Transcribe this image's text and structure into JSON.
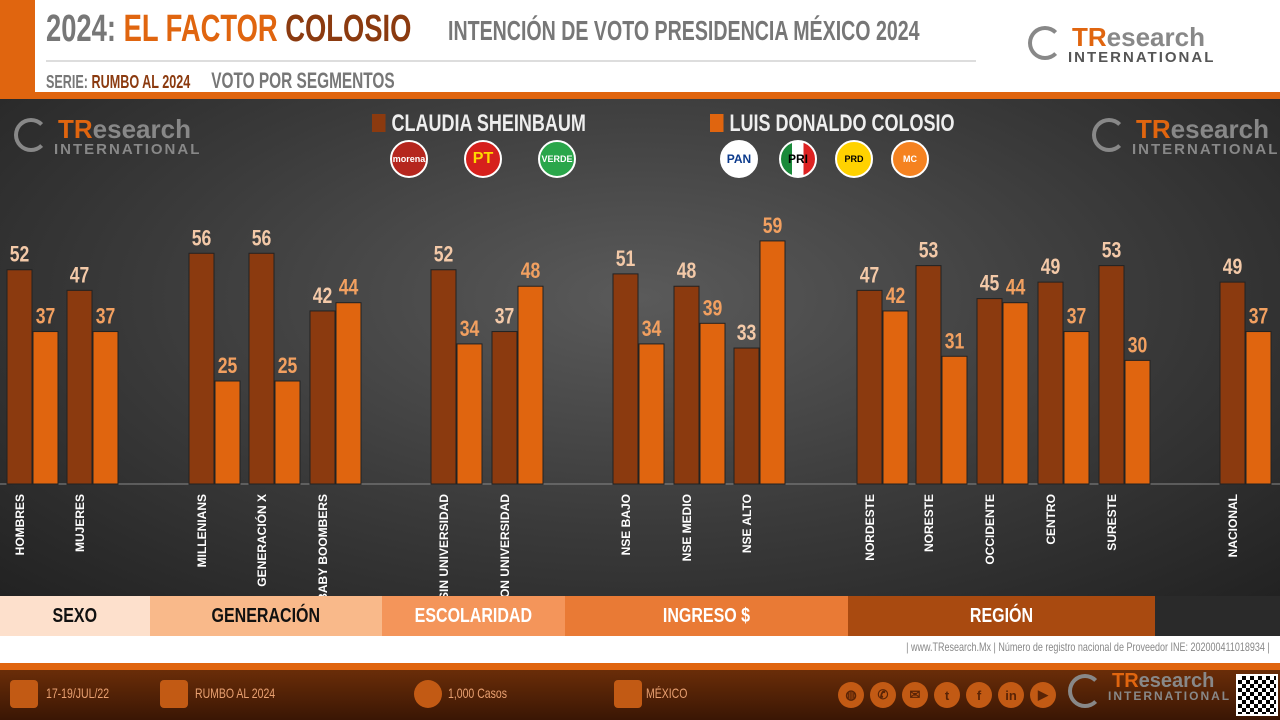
{
  "header": {
    "title_prefix": "2024:",
    "title_highlight1": "EL FACTOR",
    "title_highlight2": "COLOSIO",
    "subtitle": "INTENCIÓN DE VOTO PRESIDENCIA MÉXICO 2024",
    "serie_label": "SERIE:",
    "serie_value": "RUMBO AL 2024",
    "section": "VOTO POR SEGMENTOS"
  },
  "brand": {
    "tr": "TR",
    "research": "esearch",
    "intl": "INTERNATIONAL"
  },
  "colors": {
    "sheinbaum": "#8b3a0f",
    "colosio": "#e0650f",
    "accent": "#e0650f",
    "label_sheinbaum": "#f3c9a8",
    "label_colosio": "#f2a060"
  },
  "parties": {
    "sheinbaum": [
      "morena",
      "PT",
      "VERDE"
    ],
    "colosio": [
      "PAN",
      "PRI",
      "PRD",
      "MC"
    ]
  },
  "chart_data": {
    "type": "bar",
    "ylim": [
      0,
      60
    ],
    "grid": false,
    "legend": "top-center",
    "categories": [
      "HOMBRES",
      "MUJERES",
      "MILLENIANS",
      "GENERACIÓN X",
      "BABY BOOMBERS",
      "SIN UNIVERSIDAD",
      "CON UNIVERSIDAD",
      "NSE BAJO",
      "NSE MEDIO",
      "NSE ALTO",
      "NORDESTE",
      "NORESTE",
      "OCCIDENTE",
      "CENTRO",
      "SURESTE",
      "NACIONAL"
    ],
    "series": [
      {
        "name": "CLAUDIA SHEINBAUM",
        "values": [
          52,
          47,
          56,
          56,
          42,
          52,
          37,
          51,
          48,
          33,
          47,
          53,
          45,
          49,
          53,
          49
        ]
      },
      {
        "name": "LUIS DONALDO COLOSIO",
        "values": [
          37,
          37,
          25,
          25,
          44,
          34,
          48,
          34,
          39,
          59,
          42,
          31,
          44,
          37,
          30,
          37
        ]
      }
    ],
    "groups": [
      {
        "label": "SEXO",
        "color": "#fde0cc"
      },
      {
        "label": "GENERACIÓN",
        "color": "#f9b98a"
      },
      {
        "label": "ESCOLARIDAD",
        "color": "#f4955a"
      },
      {
        "label": "INGRESO $",
        "color": "#e97a35"
      },
      {
        "label": "REGIÓN",
        "color": "#a94a10"
      }
    ]
  },
  "source": "| www.TResearch.Mx | Número de registro nacional de Proveedor INE: 202000411018934 |",
  "footer": {
    "date": "17-19/JUL/22",
    "serie": "RUMBO AL 2024",
    "cases": "1,000 Casos",
    "place": "MÉXICO"
  }
}
